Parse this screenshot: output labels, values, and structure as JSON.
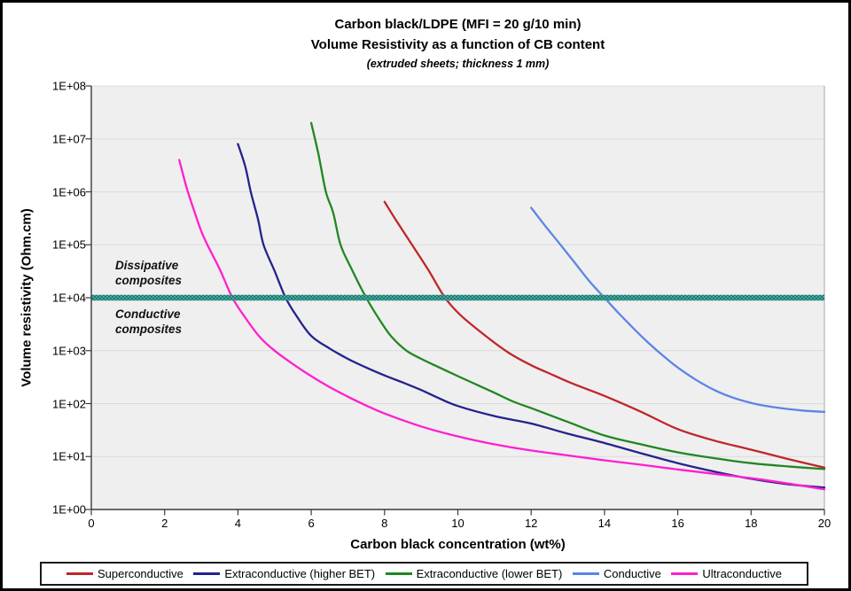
{
  "chart_data": {
    "type": "line",
    "title": "Carbon black/LDPE (MFI = 20 g/10 min)",
    "subtitle": "Volume Resistivity as a function of CB content",
    "subtitle2": "(extruded sheets; thickness 1 mm)",
    "xlabel": "Carbon black concentration (wt%)",
    "ylabel": "Volume resistivity (Ohm.cm)",
    "xlim": [
      0,
      20
    ],
    "x_ticks": [
      0,
      2,
      4,
      6,
      8,
      10,
      12,
      14,
      16,
      18,
      20
    ],
    "y_scale": "log",
    "ylim": [
      1,
      100000000
    ],
    "y_tick_labels": [
      "1E+08",
      "1E+07",
      "1E+06",
      "1E+05",
      "1E+04",
      "1E+03",
      "1E+02",
      "1E+01",
      "1E+00"
    ],
    "grid": "horizontal gridlines on",
    "legend_position": "bottom",
    "plot_bg_color": "#efefef",
    "gridline_color": "#dcdcdc",
    "axis_color": "#3a3a3a",
    "threshold_band": {
      "value": 10000,
      "color_dark": "#157d74",
      "color_light": "#4fa39a"
    },
    "annotations": {
      "dissipative": {
        "line1": "Dissipative",
        "line2": "composites"
      },
      "conductive": {
        "line1": "Conductive",
        "line2": "composites"
      }
    },
    "series": [
      {
        "name": "Superconductive",
        "color": "#c0262a",
        "points": [
          [
            8.0,
            650000
          ],
          [
            8.3,
            300000
          ],
          [
            8.75,
            100000
          ],
          [
            9.2,
            33000
          ],
          [
            9.65,
            10000
          ],
          [
            10.1,
            4500
          ],
          [
            10.8,
            1800
          ],
          [
            11.4,
            900
          ],
          [
            12.0,
            530
          ],
          [
            12.5,
            370
          ],
          [
            13.0,
            260
          ],
          [
            13.5,
            190
          ],
          [
            14.0,
            140
          ],
          [
            15.0,
            70
          ],
          [
            16.0,
            33
          ],
          [
            17.0,
            20
          ],
          [
            18.0,
            13.5
          ],
          [
            19.0,
            9
          ],
          [
            20.0,
            6.2
          ]
        ]
      },
      {
        "name": "Extraconductive (higher BET)",
        "color": "#23238f",
        "points": [
          [
            4.0,
            8000000
          ],
          [
            4.2,
            3000000
          ],
          [
            4.35,
            1000000
          ],
          [
            4.55,
            300000
          ],
          [
            4.7,
            100000
          ],
          [
            5.0,
            32000
          ],
          [
            5.3,
            10000
          ],
          [
            5.6,
            4500
          ],
          [
            6.0,
            1900
          ],
          [
            6.5,
            1100
          ],
          [
            7.0,
            700
          ],
          [
            7.5,
            480
          ],
          [
            8.0,
            340
          ],
          [
            8.5,
            250
          ],
          [
            9.0,
            180
          ],
          [
            9.5,
            125
          ],
          [
            10.0,
            90
          ],
          [
            11.0,
            58
          ],
          [
            12.0,
            42
          ],
          [
            13.0,
            27
          ],
          [
            14.0,
            18
          ],
          [
            15.0,
            11.5
          ],
          [
            16.0,
            7.5
          ],
          [
            17.0,
            5.2
          ],
          [
            18.0,
            3.8
          ],
          [
            19.0,
            3.0
          ],
          [
            20.0,
            2.6
          ]
        ]
      },
      {
        "name": "Extraconductive (lower BET)",
        "color": "#218721",
        "points": [
          [
            6.0,
            20000000
          ],
          [
            6.2,
            5000000
          ],
          [
            6.4,
            1000000
          ],
          [
            6.6,
            400000
          ],
          [
            6.8,
            100000
          ],
          [
            7.1,
            35000
          ],
          [
            7.5,
            10000
          ],
          [
            7.9,
            3500
          ],
          [
            8.2,
            1800
          ],
          [
            8.6,
            1000
          ],
          [
            9.0,
            700
          ],
          [
            9.5,
            480
          ],
          [
            10.0,
            330
          ],
          [
            10.5,
            230
          ],
          [
            11.0,
            160
          ],
          [
            11.5,
            110
          ],
          [
            12.0,
            82
          ],
          [
            13.0,
            45
          ],
          [
            14.0,
            25
          ],
          [
            15.0,
            17
          ],
          [
            16.0,
            12
          ],
          [
            17.0,
            9.3
          ],
          [
            18.0,
            7.5
          ],
          [
            19.0,
            6.5
          ],
          [
            20.0,
            5.8
          ]
        ]
      },
      {
        "name": "Conductive",
        "color": "#5b85e6",
        "points": [
          [
            12.0,
            500000
          ],
          [
            12.4,
            220000
          ],
          [
            12.8,
            100000
          ],
          [
            13.2,
            45000
          ],
          [
            13.6,
            20000
          ],
          [
            14.0,
            10000
          ],
          [
            14.4,
            5000
          ],
          [
            14.8,
            2600
          ],
          [
            15.2,
            1400
          ],
          [
            15.6,
            800
          ],
          [
            16.0,
            480
          ],
          [
            16.5,
            280
          ],
          [
            17.0,
            180
          ],
          [
            17.5,
            130
          ],
          [
            18.0,
            103
          ],
          [
            18.5,
            88
          ],
          [
            19.0,
            79
          ],
          [
            19.5,
            73
          ],
          [
            20.0,
            70
          ]
        ]
      },
      {
        "name": "Ultraconductive",
        "color": "#ff1fd0",
        "points": [
          [
            2.4,
            4000000
          ],
          [
            2.6,
            1200000
          ],
          [
            2.8,
            450000
          ],
          [
            3.0,
            180000
          ],
          [
            3.2,
            90000
          ],
          [
            3.5,
            35000
          ],
          [
            3.85,
            10000
          ],
          [
            4.2,
            4200
          ],
          [
            4.6,
            1800
          ],
          [
            5.0,
            1000
          ],
          [
            5.5,
            560
          ],
          [
            6.0,
            330
          ],
          [
            6.5,
            205
          ],
          [
            7.0,
            135
          ],
          [
            7.5,
            92
          ],
          [
            8.0,
            65
          ],
          [
            9.0,
            37
          ],
          [
            10.0,
            24
          ],
          [
            11.0,
            17
          ],
          [
            12.0,
            13
          ],
          [
            13.0,
            10.5
          ],
          [
            14.0,
            8.5
          ],
          [
            15.0,
            7.0
          ],
          [
            16.0,
            5.7
          ],
          [
            17.0,
            4.7
          ],
          [
            18.0,
            3.9
          ],
          [
            19.0,
            3.1
          ],
          [
            20.0,
            2.4
          ]
        ]
      }
    ]
  }
}
